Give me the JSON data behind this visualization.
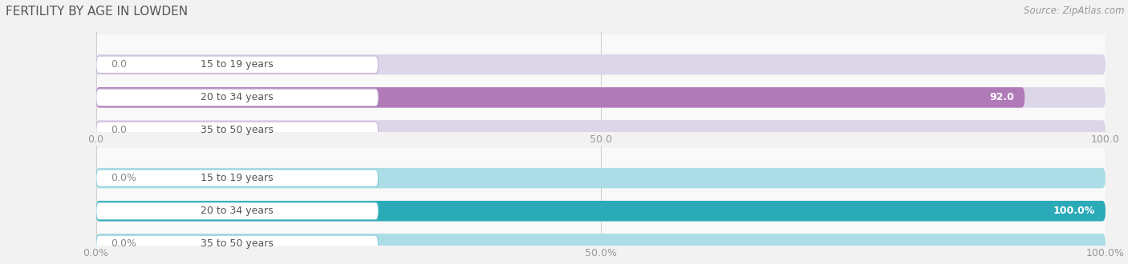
{
  "title": "FERTILITY BY AGE IN LOWDEN",
  "source": "Source: ZipAtlas.com",
  "top_chart": {
    "categories": [
      "15 to 19 years",
      "20 to 34 years",
      "35 to 50 years"
    ],
    "values": [
      0.0,
      92.0,
      0.0
    ],
    "xlim": [
      0,
      100
    ],
    "xticks": [
      0.0,
      50.0,
      100.0
    ],
    "xtick_labels": [
      "0.0",
      "50.0",
      "100.0"
    ],
    "bar_color": "#b07ab8",
    "bar_bg_color": "#ddd5e8",
    "pill_bg_color": "#ede8f3",
    "pill_border_color": "#c8b8d8"
  },
  "bottom_chart": {
    "categories": [
      "15 to 19 years",
      "20 to 34 years",
      "35 to 50 years"
    ],
    "values": [
      0.0,
      100.0,
      0.0
    ],
    "xlim": [
      0,
      100
    ],
    "xticks": [
      0.0,
      50.0,
      100.0
    ],
    "xtick_labels": [
      "0.0%",
      "50.0%",
      "100.0%"
    ],
    "bar_color": "#2baab8",
    "bar_bg_color": "#aadde5",
    "pill_bg_color": "#ddf2f5",
    "pill_border_color": "#88ccda"
  },
  "background_color": "#f2f2f2",
  "row_bg_color": "#f9f9f9",
  "separator_color": "#ffffff",
  "label_fontsize": 9,
  "tick_fontsize": 9,
  "title_fontsize": 11,
  "source_fontsize": 8.5,
  "category_fontsize": 9
}
